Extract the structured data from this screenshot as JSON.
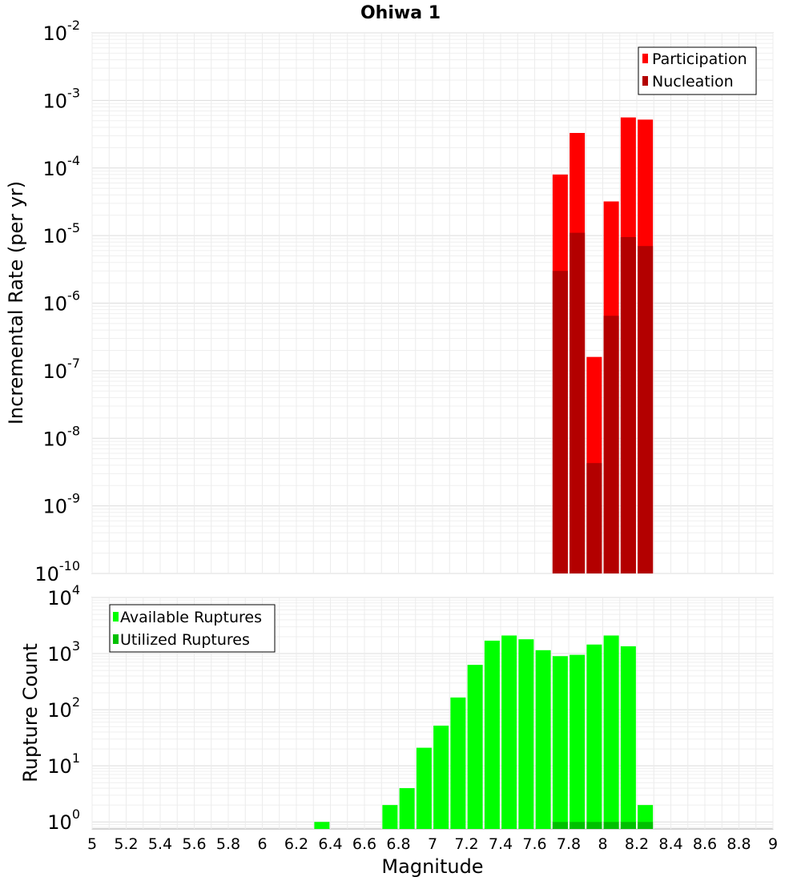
{
  "chart_data": [
    {
      "type": "bar",
      "title": "Ohiwa 1",
      "xlabel": "",
      "ylabel": "Incremental Rate (per yr)",
      "yscale": "log",
      "ylim": [
        1e-10,
        0.01
      ],
      "xlim": [
        5,
        9
      ],
      "y_ticks": [
        {
          "value": 1e-10,
          "base": "10",
          "exp": "-10"
        },
        {
          "value": 1e-09,
          "base": "10",
          "exp": "-9"
        },
        {
          "value": 1e-08,
          "base": "10",
          "exp": "-8"
        },
        {
          "value": 1e-07,
          "base": "10",
          "exp": "-7"
        },
        {
          "value": 1e-06,
          "base": "10",
          "exp": "-6"
        },
        {
          "value": 1e-05,
          "base": "10",
          "exp": "-5"
        },
        {
          "value": 0.0001,
          "base": "10",
          "exp": "-4"
        },
        {
          "value": 0.001,
          "base": "10",
          "exp": "-3"
        },
        {
          "value": 0.01,
          "base": "10",
          "exp": "-2"
        }
      ],
      "grid": true,
      "legend_position": "top-right",
      "series": [
        {
          "name": "Participation",
          "color": "#ff0000",
          "x": [
            7.75,
            7.85,
            7.95,
            8.05,
            8.15,
            8.25
          ],
          "values": [
            8e-05,
            0.00033,
            1.6e-07,
            3.2e-05,
            0.00056,
            0.00052
          ]
        },
        {
          "name": "Nucleation",
          "color": "#b30000",
          "x": [
            7.75,
            7.85,
            7.95,
            8.05,
            8.15,
            8.25
          ],
          "values": [
            3e-06,
            1.1e-05,
            4.3e-09,
            6.5e-07,
            9.5e-06,
            7e-06
          ]
        }
      ]
    },
    {
      "type": "bar",
      "title": "",
      "xlabel": "Magnitude",
      "ylabel": "Rupture Count",
      "yscale": "log",
      "ylim": [
        0.75,
        10000
      ],
      "xlim": [
        5,
        9
      ],
      "x_ticks": [
        "5",
        "5.2",
        "5.4",
        "5.6",
        "5.8",
        "6",
        "6.2",
        "6.4",
        "6.6",
        "6.8",
        "7",
        "7.2",
        "7.4",
        "7.6",
        "7.8",
        "8",
        "8.2",
        "8.4",
        "8.6",
        "8.8",
        "9"
      ],
      "y_ticks": [
        {
          "value": 1,
          "base": "10",
          "exp": "0"
        },
        {
          "value": 10,
          "base": "10",
          "exp": "1"
        },
        {
          "value": 100,
          "base": "10",
          "exp": "2"
        },
        {
          "value": 1000,
          "base": "10",
          "exp": "3"
        },
        {
          "value": 10000,
          "base": "10",
          "exp": "4"
        }
      ],
      "grid": true,
      "legend_position": "top-left",
      "series": [
        {
          "name": "Available Ruptures",
          "color": "#00ff00",
          "x": [
            6.35,
            6.75,
            6.85,
            6.95,
            7.05,
            7.15,
            7.25,
            7.35,
            7.45,
            7.55,
            7.65,
            7.75,
            7.85,
            7.95,
            8.05,
            8.15,
            8.25
          ],
          "values": [
            1,
            2,
            4,
            21,
            52,
            165,
            630,
            1700,
            2100,
            1800,
            1150,
            900,
            950,
            1450,
            2100,
            1350,
            2
          ]
        },
        {
          "name": "Utilized Ruptures",
          "color": "#00c000",
          "x": [
            7.75,
            7.85,
            7.95,
            8.05,
            8.15,
            8.25
          ],
          "values": [
            1,
            1,
            1,
            1,
            1,
            1
          ]
        }
      ]
    }
  ]
}
